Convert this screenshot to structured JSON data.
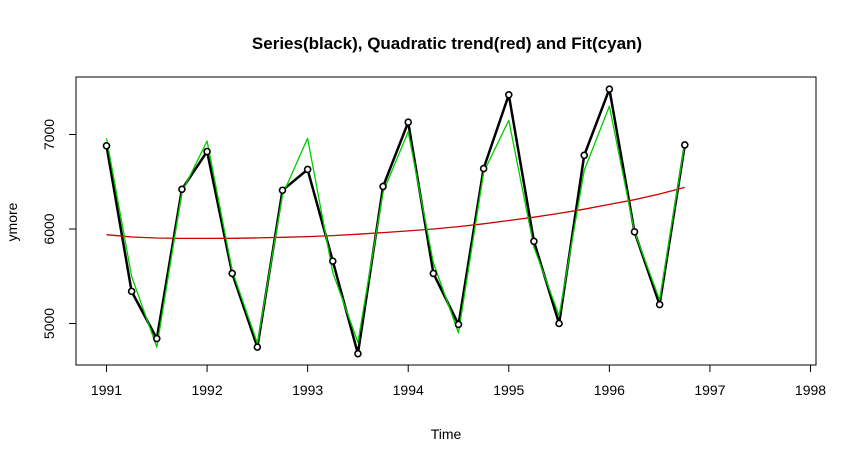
{
  "chart_data": {
    "type": "line",
    "title": "Series(black), Quadratic trend(red) and Fit(cyan)",
    "xlabel": "Time",
    "ylabel": "ymore",
    "xlim": [
      1991,
      1998
    ],
    "ylim": [
      4500,
      7600
    ],
    "x_ticks": [
      "1991",
      "1992",
      "1993",
      "1994",
      "1995",
      "1996",
      "1997",
      "1998"
    ],
    "y_ticks": [
      "5000",
      "6000",
      "7000"
    ],
    "grid": false,
    "legend": "none",
    "colors": {
      "series": "#000000",
      "trend": "#cc0000",
      "fit": "#00cc00"
    },
    "x": [
      1991.0,
      1991.25,
      1991.5,
      1991.75,
      1992.0,
      1992.25,
      1992.5,
      1992.75,
      1993.0,
      1993.25,
      1993.5,
      1993.75,
      1994.0,
      1994.25,
      1994.5,
      1994.75,
      1995.0,
      1995.25,
      1995.5,
      1995.75,
      1996.0,
      1996.25,
      1996.5,
      1996.75
    ],
    "series": [
      {
        "role": "series",
        "values": [
          6880,
          5340,
          4840,
          6420,
          6820,
          5530,
          4750,
          6410,
          6630,
          5660,
          4680,
          6450,
          7130,
          5530,
          4990,
          6640,
          7420,
          5870,
          5000,
          6780,
          7480,
          5970,
          5200,
          6890
        ]
      },
      {
        "role": "trend",
        "values": [
          5940,
          5915,
          5905,
          5900,
          5900,
          5902,
          5906,
          5912,
          5920,
          5930,
          5945,
          5962,
          5980,
          6000,
          6025,
          6055,
          6090,
          6125,
          6165,
          6210,
          6260,
          6310,
          6370,
          6440
        ]
      },
      {
        "role": "fit",
        "values": [
          6960,
          5500,
          4750,
          6390,
          6930,
          5560,
          4790,
          6360,
          6960,
          5540,
          4800,
          6390,
          7030,
          5640,
          4900,
          6600,
          7150,
          5810,
          5080,
          6620,
          7300,
          5970,
          5250,
          6910
        ]
      }
    ]
  }
}
